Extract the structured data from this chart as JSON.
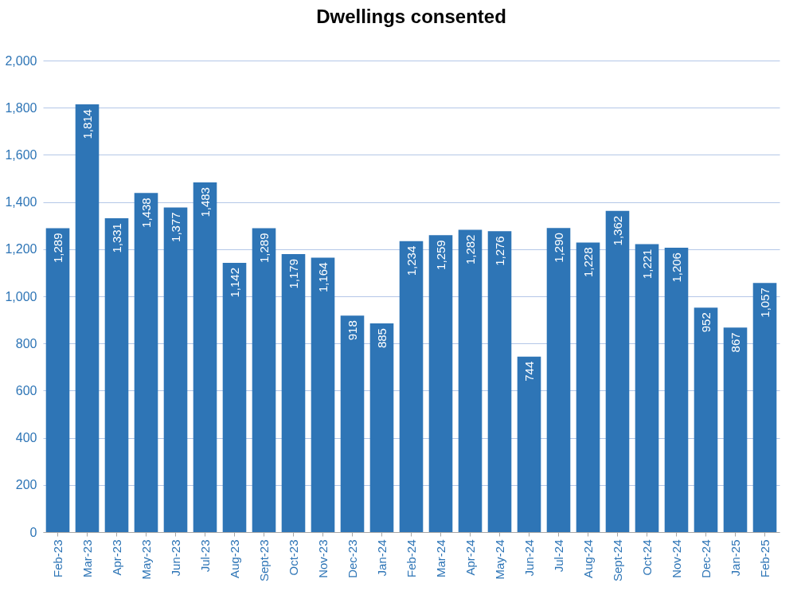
{
  "chart_data": {
    "type": "bar",
    "title": "Dwellings consented",
    "categories": [
      "Feb-23",
      "Mar-23",
      "Apr-23",
      "May-23",
      "Jun-23",
      "Jul-23",
      "Aug-23",
      "Sept-23",
      "Oct-23",
      "Nov-23",
      "Dec-23",
      "Jan-24",
      "Feb-24",
      "Mar-24",
      "Apr-24",
      "May-24",
      "Jun-24",
      "Jul-24",
      "Aug-24",
      "Sept-24",
      "Oct-24",
      "Nov-24",
      "Dec-24",
      "Jan-25",
      "Feb-25"
    ],
    "values": [
      1289,
      1814,
      1331,
      1438,
      1377,
      1483,
      1142,
      1289,
      1179,
      1164,
      918,
      885,
      1234,
      1259,
      1282,
      1276,
      744,
      1290,
      1228,
      1362,
      1221,
      1206,
      952,
      867,
      1057
    ],
    "value_labels": [
      "1,289",
      "1,814",
      "1,331",
      "1,438",
      "1,377",
      "1,483",
      "1,142",
      "1,289",
      "1,179",
      "1,164",
      "918",
      "885",
      "1,234",
      "1,259",
      "1,282",
      "1,276",
      "744",
      "1,290",
      "1,228",
      "1,362",
      "1,221",
      "1,206",
      "952",
      "867",
      "1,057"
    ],
    "color": "#2e75b6",
    "ylim": [
      0,
      2000
    ],
    "yticks": [
      0,
      {
        "value": 200,
        "label": "200"
      },
      {
        "value": 400,
        "label": "400"
      },
      {
        "value": 600,
        "label": "600"
      },
      {
        "value": 800,
        "label": "800"
      },
      {
        "value": 1000,
        "label": "1,000"
      },
      {
        "value": 1200,
        "label": "1,200"
      },
      {
        "value": 1400,
        "label": "1,400"
      },
      {
        "value": 1600,
        "label": "1,600"
      },
      {
        "value": 1800,
        "label": "1,800"
      },
      {
        "value": 2000,
        "label": "2,000"
      }
    ],
    "grid": "y"
  }
}
